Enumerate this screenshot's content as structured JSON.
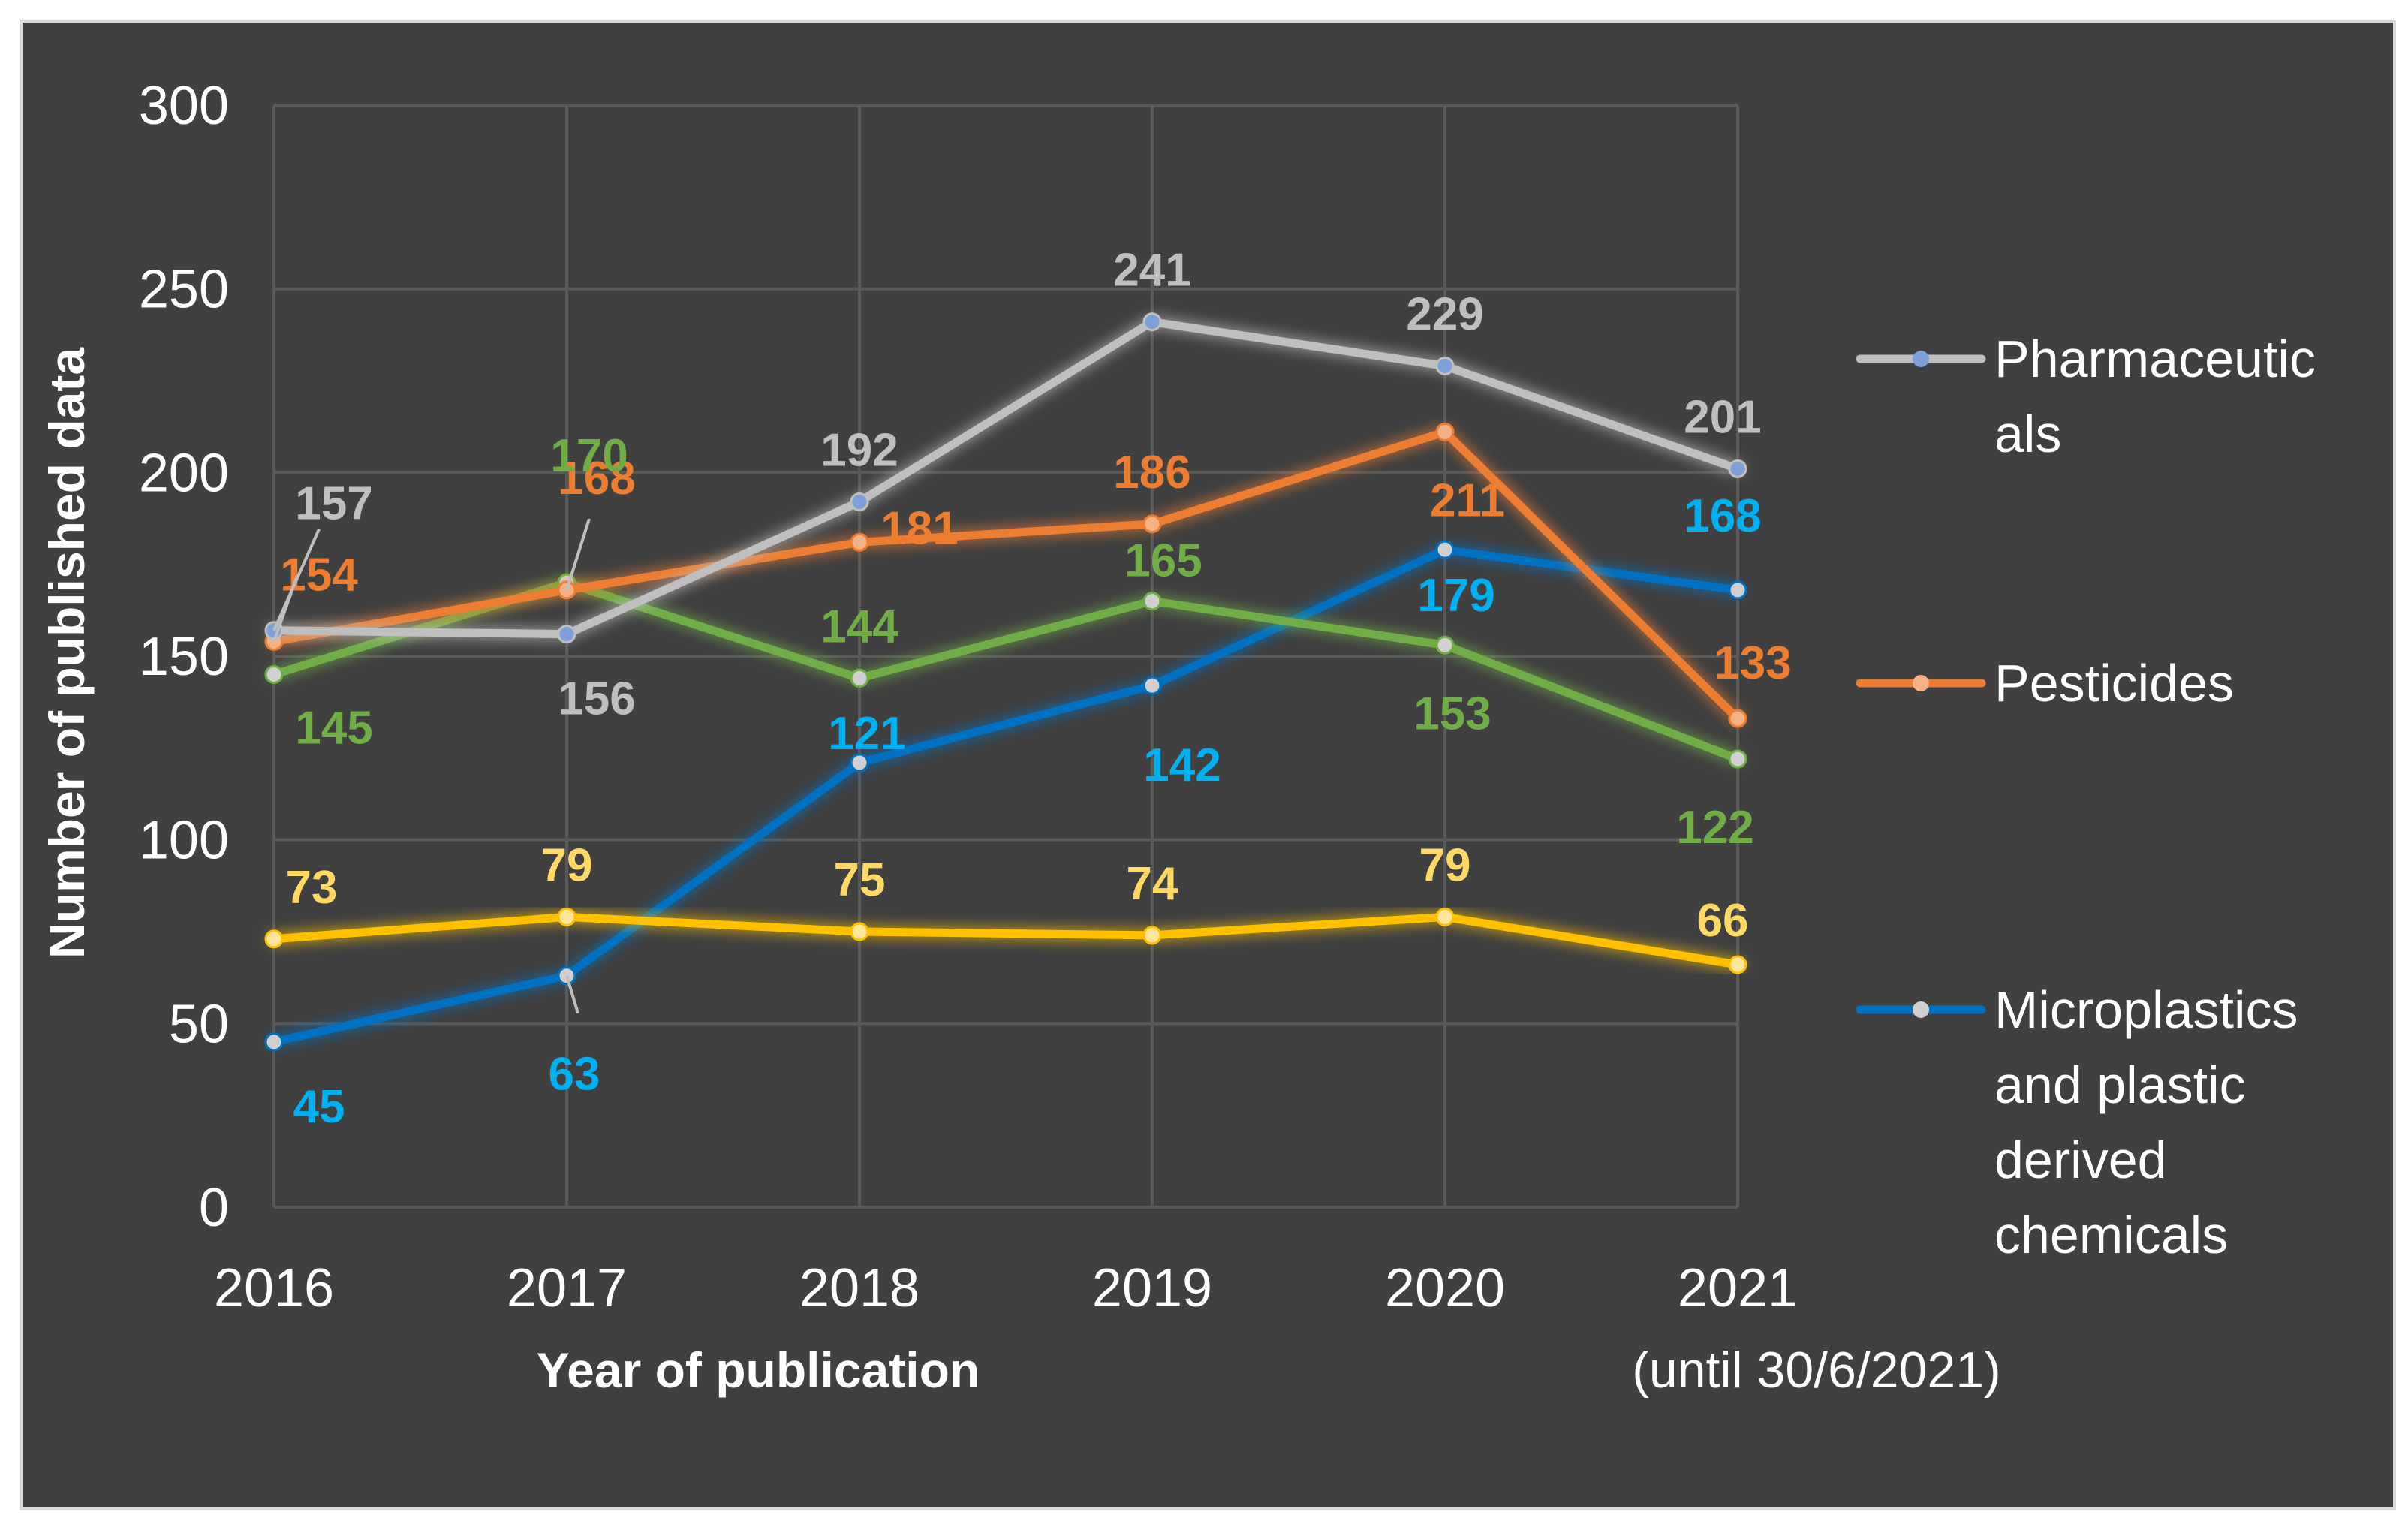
{
  "chart_data": {
    "type": "line",
    "categories": [
      "2016",
      "2017",
      "2018",
      "2019",
      "2020",
      "2021"
    ],
    "category_note": "(until 30/6/2021)",
    "xlabel": "Year of publication",
    "ylabel": "Number of published data",
    "ylim": [
      0,
      300
    ],
    "yticks": [
      0,
      50,
      100,
      150,
      200,
      250,
      300
    ],
    "grid": true,
    "legend_position": "right",
    "series": [
      {
        "name": "Pharmaceuticals",
        "legend_lines": [
          "Pharmaceutic",
          "als"
        ],
        "color": "#bfbfbf",
        "label_color": "#bfbfbf",
        "marker_color": "#7f9fd8",
        "values": [
          157,
          156,
          192,
          241,
          229,
          201
        ]
      },
      {
        "name": "Pesticides",
        "legend_lines": [
          "Pesticides"
        ],
        "color": "#ed7d31",
        "label_color": "#ed7d31",
        "marker_color": "#f4b183",
        "values": [
          154,
          168,
          181,
          186,
          211,
          133
        ]
      },
      {
        "name": "",
        "legend_lines": [],
        "color": "#70ad47",
        "label_color": "#70ad47",
        "marker_color": "#d0d0d0",
        "values": [
          145,
          170,
          144,
          165,
          153,
          122
        ]
      },
      {
        "name": "Microplastics and plastic derived chemicals",
        "legend_lines": [
          "Microplastics",
          "and plastic",
          "derived",
          "chemicals"
        ],
        "color": "#0070c0",
        "label_color": "#00b0f0",
        "marker_color": "#d0d0d0",
        "values": [
          45,
          63,
          121,
          142,
          179,
          168
        ]
      },
      {
        "name": "",
        "legend_lines": [],
        "color": "#ffc000",
        "label_color": "#ffd966",
        "marker_color": "#ffe699",
        "values": [
          73,
          79,
          75,
          74,
          79,
          66
        ]
      }
    ]
  }
}
